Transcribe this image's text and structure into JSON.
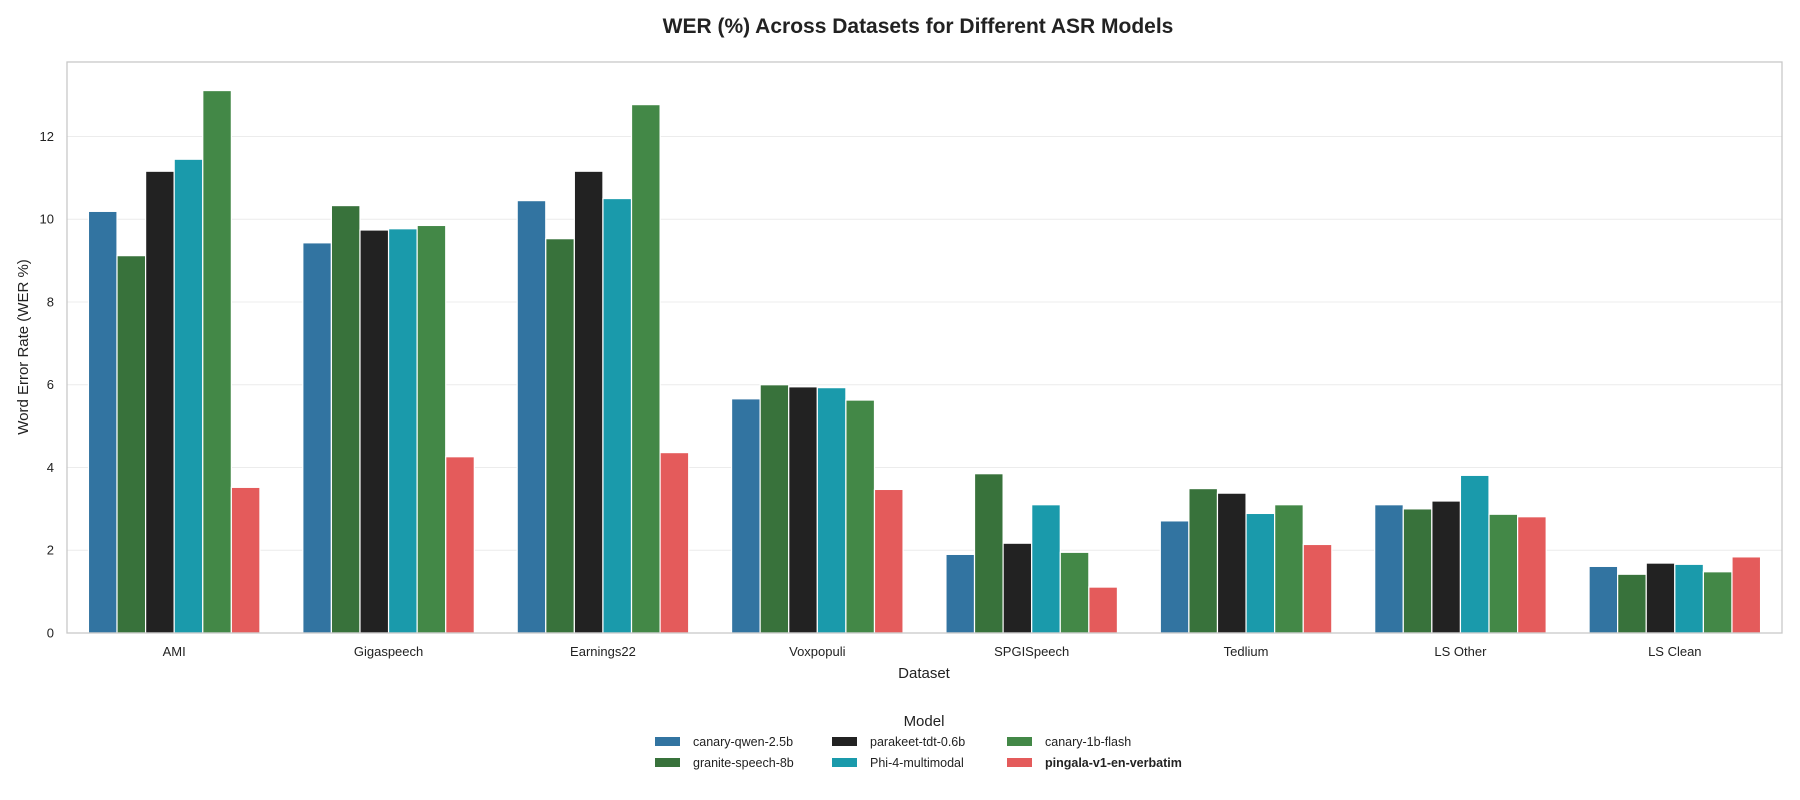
{
  "chart_data": {
    "type": "bar",
    "title": "WER (%) Across Datasets for Different ASR Models",
    "xlabel": "Dataset",
    "ylabel": "Word Error Rate (WER %)",
    "ylim": [
      0,
      13.8
    ],
    "yticks": [
      0,
      2,
      4,
      6,
      8,
      10,
      12
    ],
    "grid": true,
    "legend_title": "Model",
    "legend_placement": "bottom-center",
    "categories": [
      "AMI",
      "Gigaspeech",
      "Earnings22",
      "Voxpopuli",
      "SPGISpeech",
      "Tedlium",
      "LS Other",
      "LS Clean"
    ],
    "series": [
      {
        "name": "canary-qwen-2.5b",
        "color": "#3274a1",
        "bold": false,
        "values": [
          10.19,
          9.43,
          10.45,
          5.66,
          1.9,
          2.71,
          3.1,
          1.61
        ]
      },
      {
        "name": "granite-speech-8b",
        "color": "#38723b",
        "bold": false,
        "values": [
          9.12,
          10.33,
          9.53,
          6.0,
          3.85,
          3.49,
          3.0,
          1.42
        ]
      },
      {
        "name": "parakeet-tdt-0.6b",
        "color": "#222222",
        "bold": false,
        "values": [
          11.16,
          9.74,
          11.16,
          5.95,
          2.17,
          3.38,
          3.19,
          1.69
        ]
      },
      {
        "name": "Phi-4-multimodal",
        "color": "#1a9aab",
        "bold": false,
        "values": [
          11.45,
          9.77,
          10.5,
          5.93,
          3.1,
          2.89,
          3.81,
          1.66
        ]
      },
      {
        "name": "canary-1b-flash",
        "color": "#438847",
        "bold": false,
        "values": [
          13.11,
          9.85,
          12.77,
          5.63,
          1.95,
          3.1,
          2.87,
          1.48
        ]
      },
      {
        "name": "pingala-v1-en-verbatim",
        "color": "#e45b5b",
        "bold": true,
        "values": [
          3.52,
          4.26,
          4.36,
          3.47,
          1.11,
          2.14,
          2.81,
          1.84
        ]
      }
    ]
  }
}
